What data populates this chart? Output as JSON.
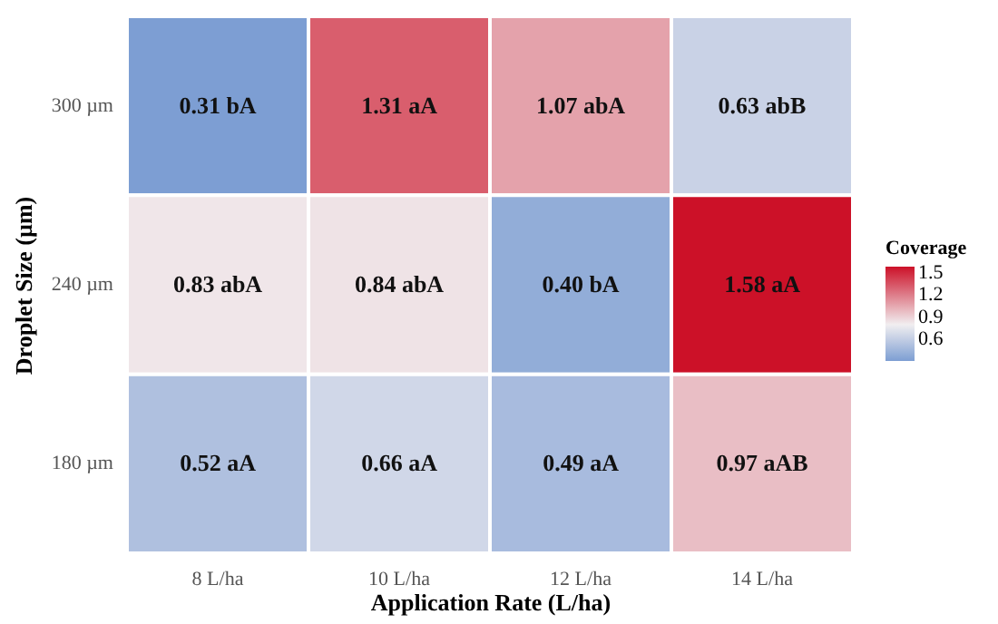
{
  "chart_data": {
    "type": "heatmap",
    "xlabel": "Application Rate (L/ha)",
    "ylabel": "Droplet Size (µm)",
    "legend_title": "Coverage",
    "categories": [
      "8 L/ha",
      "10 L/ha",
      "12 L/ha",
      "14 L/ha"
    ],
    "y_categories": [
      "300 µm",
      "240 µm",
      "180 µm"
    ],
    "cells": [
      [
        0.31,
        1.31,
        1.07,
        0.63
      ],
      [
        0.83,
        0.84,
        0.4,
        1.58
      ],
      [
        0.52,
        0.66,
        0.49,
        0.97
      ]
    ],
    "cell_labels": [
      [
        "0.31 bA",
        "1.31 aA",
        "1.07 abA",
        "0.63 abB"
      ],
      [
        "0.83 abA",
        "0.84 abA",
        "0.40 bA",
        "1.58 aA"
      ],
      [
        "0.52 aA",
        "0.66 aA",
        "0.49 aA",
        "0.97 aAB"
      ]
    ],
    "clim": [
      0.31,
      1.58
    ],
    "cticks": [
      0.6,
      0.9,
      1.2,
      1.5
    ]
  }
}
